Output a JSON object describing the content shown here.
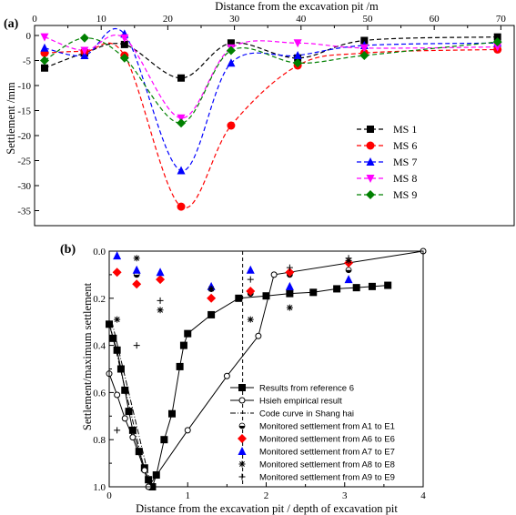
{
  "chart_data": [
    {
      "type": "line",
      "panel_label": "(a)",
      "xlabel": "Distance from the excavation pit /m",
      "ylabel": "Settlement /mm",
      "xlim": [
        0,
        72
      ],
      "ylim": [
        -38,
        2
      ],
      "xticks": [
        0,
        10,
        20,
        30,
        40,
        50,
        60,
        70
      ],
      "yticks": [
        0,
        -5,
        -10,
        -15,
        -20,
        -25,
        -30,
        -35
      ],
      "x_axis_position": "top",
      "legend_position": "bottom-right",
      "grid": false,
      "series": [
        {
          "name": "MS 1",
          "color": "#000000",
          "marker": "square",
          "points": [
            [
              1.5,
              -6.5
            ],
            [
              7.5,
              -3.5
            ],
            [
              13.5,
              -1.8
            ],
            [
              22,
              -8.5
            ],
            [
              29.5,
              -1.5
            ],
            [
              39.5,
              -4.5
            ],
            [
              49.5,
              -1.0
            ],
            [
              69.5,
              -0.3
            ]
          ]
        },
        {
          "name": "MS 6",
          "color": "#ff0000",
          "marker": "circle",
          "points": [
            [
              1.5,
              -3.5
            ],
            [
              7.5,
              -3.2
            ],
            [
              13.5,
              -4.0
            ],
            [
              22,
              -34.2
            ],
            [
              29.5,
              -18.0
            ],
            [
              39.5,
              -6.0
            ],
            [
              49.5,
              -3.5
            ],
            [
              69.5,
              -2.8
            ]
          ]
        },
        {
          "name": "MS 7",
          "color": "#0000ff",
          "marker": "triangle-up",
          "points": [
            [
              1.5,
              -2.5
            ],
            [
              7.5,
              -4.0
            ],
            [
              13.5,
              0.3
            ],
            [
              22,
              -27.0
            ],
            [
              29.5,
              -5.5
            ],
            [
              39.5,
              -4.0
            ],
            [
              49.5,
              -2.0
            ],
            [
              69.5,
              -1.5
            ]
          ]
        },
        {
          "name": "MS 8",
          "color": "#ff00ff",
          "marker": "triangle-down",
          "points": [
            [
              1.5,
              -0.3
            ],
            [
              7.5,
              -3.0
            ],
            [
              13.5,
              -0.5
            ],
            [
              22,
              -16.5
            ],
            [
              29.5,
              -2.5
            ],
            [
              39.5,
              -1.5
            ],
            [
              49.5,
              -2.5
            ],
            [
              69.5,
              -2.3
            ]
          ]
        },
        {
          "name": "MS 9",
          "color": "#008000",
          "marker": "diamond",
          "points": [
            [
              1.5,
              -5.0
            ],
            [
              7.5,
              -0.5
            ],
            [
              13.5,
              -4.5
            ],
            [
              22,
              -17.5
            ],
            [
              29.5,
              -3.0
            ],
            [
              39.5,
              -5.5
            ],
            [
              49.5,
              -4.0
            ],
            [
              69.5,
              -1.3
            ]
          ]
        }
      ]
    },
    {
      "type": "line",
      "panel_label": "(b)",
      "xlabel": "Distance from the excavation pit / depth of excavation pit",
      "ylabel": "Settlement/maximum settlement",
      "xlim": [
        0,
        4
      ],
      "ylim": [
        1.0,
        0.0
      ],
      "xticks": [
        0,
        1,
        2,
        3,
        4
      ],
      "yticks": [
        0.0,
        0.2,
        0.4,
        0.6,
        0.8,
        1.0
      ],
      "ytick_labels": [
        "0.0",
        "0.2",
        "0.4",
        "0.6",
        "0.8",
        "1.0"
      ],
      "y_axis_inverted": true,
      "vertical_reference_x": 1.7,
      "legend_position": "bottom-right",
      "grid": false,
      "series": [
        {
          "name": "Results from reference 6",
          "color": "#000000",
          "marker": "filled-square",
          "line": "solid",
          "points": [
            [
              0,
              0.31
            ],
            [
              0.05,
              0.37
            ],
            [
              0.1,
              0.42
            ],
            [
              0.15,
              0.5
            ],
            [
              0.2,
              0.59
            ],
            [
              0.25,
              0.68
            ],
            [
              0.3,
              0.76
            ],
            [
              0.38,
              0.85
            ],
            [
              0.45,
              0.92
            ],
            [
              0.5,
              0.97
            ],
            [
              0.55,
              1.0
            ],
            [
              0.6,
              0.95
            ],
            [
              0.7,
              0.8
            ],
            [
              0.8,
              0.69
            ],
            [
              0.9,
              0.49
            ],
            [
              0.95,
              0.4
            ],
            [
              1.0,
              0.35
            ],
            [
              1.3,
              0.27
            ],
            [
              1.65,
              0.2
            ],
            [
              2.0,
              0.19
            ],
            [
              2.3,
              0.18
            ],
            [
              2.6,
              0.175
            ],
            [
              2.9,
              0.16
            ],
            [
              3.15,
              0.155
            ],
            [
              3.35,
              0.15
            ],
            [
              3.55,
              0.145
            ]
          ]
        },
        {
          "name": "Hsieh empirical result",
          "color": "#000000",
          "marker": "open-circle",
          "line": "solid",
          "points": [
            [
              0,
              0.52
            ],
            [
              0.1,
              0.61
            ],
            [
              0.2,
              0.71
            ],
            [
              0.3,
              0.79
            ],
            [
              0.45,
              0.93
            ],
            [
              0.5,
              1.0
            ],
            [
              1.0,
              0.76
            ],
            [
              1.5,
              0.53
            ],
            [
              1.9,
              0.36
            ],
            [
              2.1,
              0.1
            ],
            [
              4.0,
              0.0
            ]
          ]
        },
        {
          "name": "Code curve in Shang hai",
          "color": "#000000",
          "marker": "none",
          "line": "dash-dot",
          "points": [
            [
              0,
              0.3
            ],
            [
              0.5,
              1.0
            ]
          ]
        },
        {
          "name": "Monitored settlement from A1 to E1",
          "color": "#000000",
          "marker": "half-circle",
          "points": [
            [
              0.1,
              0.09
            ],
            [
              0.35,
              0.1
            ],
            [
              0.65,
              0.12
            ],
            [
              1.3,
              0.16
            ],
            [
              1.8,
              0.18
            ],
            [
              2.3,
              0.1
            ],
            [
              3.05,
              0.08
            ]
          ]
        },
        {
          "name": "Monitored settlement from A6 to E6",
          "color": "#ff0000",
          "marker": "filled-diamond",
          "points": [
            [
              0.1,
              0.09
            ],
            [
              0.35,
              0.14
            ],
            [
              0.65,
              0.12
            ],
            [
              1.3,
              0.2
            ],
            [
              1.8,
              0.17
            ],
            [
              2.3,
              0.09
            ],
            [
              3.05,
              0.05
            ]
          ]
        },
        {
          "name": "Monitored settlement from A7 to E7",
          "color": "#0000ff",
          "marker": "filled-triangle",
          "points": [
            [
              0.1,
              0.02
            ],
            [
              0.35,
              0.08
            ],
            [
              0.65,
              0.09
            ],
            [
              1.3,
              0.15
            ],
            [
              1.8,
              0.08
            ],
            [
              2.3,
              0.15
            ],
            [
              3.05,
              0.12
            ]
          ]
        },
        {
          "name": "Monitored settlement from A8 to E8",
          "color": "#000000",
          "marker": "asterisk",
          "points": [
            [
              0.1,
              0.29
            ],
            [
              0.35,
              0.03
            ],
            [
              0.65,
              0.25
            ],
            [
              1.3,
              0.16
            ],
            [
              1.8,
              0.29
            ],
            [
              2.3,
              0.24
            ],
            [
              3.05,
              0.04
            ]
          ]
        },
        {
          "name": "Monitored settlement from A9 to E9",
          "color": "#000000",
          "marker": "plus",
          "points": [
            [
              0.1,
              0.76
            ],
            [
              0.35,
              0.4
            ],
            [
              0.65,
              0.21
            ],
            [
              1.3,
              0.16
            ],
            [
              1.8,
              0.12
            ],
            [
              2.3,
              0.07
            ],
            [
              3.05,
              0.03
            ]
          ]
        }
      ]
    }
  ]
}
